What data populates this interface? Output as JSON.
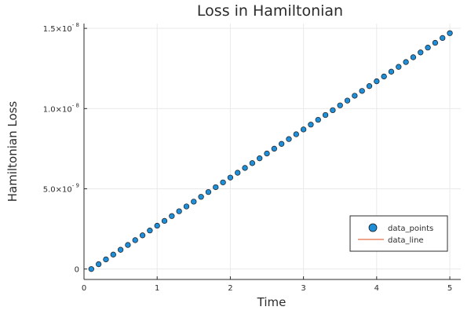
{
  "chart_data": {
    "type": "scatter",
    "title": "Loss in Hamiltonian",
    "xlabel": "Time",
    "ylabel": "Hamiltonian Loss",
    "xlim": [
      0,
      5.15
    ],
    "ylim": [
      -6.5e-10,
      1.53e-08
    ],
    "x_ticks": [
      {
        "value": 0,
        "label": "0"
      },
      {
        "value": 1,
        "label": "1"
      },
      {
        "value": 2,
        "label": "2"
      },
      {
        "value": 3,
        "label": "3"
      },
      {
        "value": 4,
        "label": "4"
      },
      {
        "value": 5,
        "label": "5"
      }
    ],
    "y_ticks": [
      {
        "value": 0,
        "mantissa": "0",
        "exp": ""
      },
      {
        "value": 5e-09,
        "mantissa": "5.0×10",
        "exp": "- 9"
      },
      {
        "value": 1e-08,
        "mantissa": "1.0×10",
        "exp": "- 8"
      },
      {
        "value": 1.5e-08,
        "mantissa": "1.5×10",
        "exp": "- 8"
      }
    ],
    "grid": true,
    "legend_position": "bottom-right",
    "series": [
      {
        "name": "data_points",
        "kind": "scatter",
        "color": "#1f8ed8",
        "x": [
          0.1,
          0.2,
          0.3,
          0.4,
          0.5,
          0.6,
          0.7,
          0.8,
          0.9,
          1.0,
          1.1,
          1.2,
          1.3,
          1.4,
          1.5,
          1.6,
          1.7,
          1.8,
          1.9,
          2.0,
          2.1,
          2.2,
          2.3,
          2.4,
          2.5,
          2.6,
          2.7,
          2.8,
          2.9,
          3.0,
          3.1,
          3.2,
          3.3,
          3.4,
          3.5,
          3.6,
          3.7,
          3.8,
          3.9,
          4.0,
          4.1,
          4.2,
          4.3,
          4.4,
          4.5,
          4.6,
          4.7,
          4.8,
          4.9,
          5.0
        ],
        "y": [
          0,
          3e-10,
          6e-10,
          9e-10,
          1.2e-09,
          1.5e-09,
          1.8e-09,
          2.1e-09,
          2.4e-09,
          2.7e-09,
          3e-09,
          3.3e-09,
          3.6e-09,
          3.9e-09,
          4.2e-09,
          4.5e-09,
          4.8e-09,
          5.1e-09,
          5.4e-09,
          5.7e-09,
          6e-09,
          6.3e-09,
          6.6e-09,
          6.9e-09,
          7.2e-09,
          7.5e-09,
          7.8e-09,
          8.1e-09,
          8.4e-09,
          8.7e-09,
          9e-09,
          9.3e-09,
          9.6e-09,
          9.9e-09,
          1.02e-08,
          1.05e-08,
          1.08e-08,
          1.11e-08,
          1.14e-08,
          1.17e-08,
          1.2e-08,
          1.23e-08,
          1.26e-08,
          1.29e-08,
          1.32e-08,
          1.35e-08,
          1.38e-08,
          1.41e-08,
          1.44e-08,
          1.47e-08
        ]
      },
      {
        "name": "data_line",
        "kind": "line",
        "color": "#e26f46",
        "x": [],
        "y": []
      }
    ]
  }
}
